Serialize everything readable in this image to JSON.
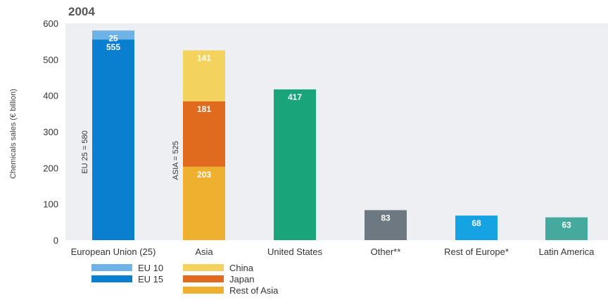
{
  "chart_data": {
    "type": "bar",
    "title": "2004",
    "ylabel": "Chemicals sales (€ billion)",
    "xlabel": "",
    "ylim": [
      0,
      600
    ],
    "yticks": [
      0,
      100,
      200,
      300,
      400,
      500,
      600
    ],
    "grid": false,
    "stacked": true,
    "categories": [
      "European Union (25)",
      "Asia",
      "United States",
      "Other**",
      "Rest of Europe*",
      "Latin America"
    ],
    "bars": [
      {
        "category": "European Union (25)",
        "group_label": "EU 25 = 580",
        "segments": [
          {
            "series": "EU 15",
            "value": 555
          },
          {
            "series": "EU 10",
            "value": 25
          }
        ]
      },
      {
        "category": "Asia",
        "group_label": "ASIA = 525",
        "segments": [
          {
            "series": "Rest of Asia",
            "value": 203
          },
          {
            "series": "Japan",
            "value": 181
          },
          {
            "series": "China",
            "value": 141
          }
        ]
      },
      {
        "category": "United States",
        "segments": [
          {
            "series": "United States",
            "value": 417
          }
        ]
      },
      {
        "category": "Other**",
        "segments": [
          {
            "series": "Other**",
            "value": 83
          }
        ]
      },
      {
        "category": "Rest of Europe*",
        "segments": [
          {
            "series": "Rest of Europe*",
            "value": 68
          }
        ]
      },
      {
        "category": "Latin America",
        "segments": [
          {
            "series": "Latin America",
            "value": 63
          }
        ]
      }
    ],
    "legend": {
      "placement": "bottom-left",
      "entries": [
        {
          "name": "EU 10",
          "color": "#6fb3e6"
        },
        {
          "name": "EU 15",
          "color": "#0b7fcf"
        },
        {
          "name": "China",
          "color": "#f4d25e"
        },
        {
          "name": "Japan",
          "color": "#e06b1f"
        },
        {
          "name": "Rest of Asia",
          "color": "#f0b02f"
        }
      ]
    },
    "colors": {
      "EU 10": "#6fb3e6",
      "EU 15": "#0b7fcf",
      "China": "#f4d25e",
      "Japan": "#e06b1f",
      "Rest of Asia": "#f0b02f",
      "United States": "#1aa47a",
      "Other**": "#6d7880",
      "Rest of Europe*": "#15a3e3",
      "Latin America": "#46a99e"
    }
  }
}
